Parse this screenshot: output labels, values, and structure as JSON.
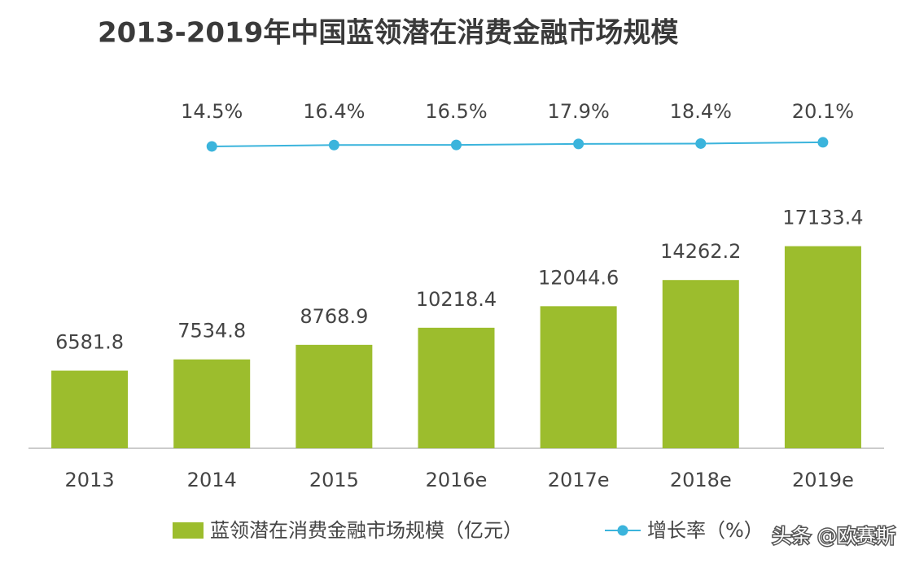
{
  "chart_data": {
    "type": "bar",
    "title": "2013-2019年中国蓝领潜在消费金融市场规模",
    "categories": [
      "2013",
      "2014",
      "2015",
      "2016e",
      "2017e",
      "2018e",
      "2019e"
    ],
    "series": [
      {
        "name": "蓝领潜在消费金融市场规模（亿元）",
        "type": "bar",
        "color": "#9cbd2d",
        "values": [
          6581.8,
          7534.8,
          8768.9,
          10218.4,
          12044.6,
          14262.2,
          17133.4
        ]
      },
      {
        "name": "增长率（%）",
        "type": "line",
        "axis": "y2",
        "color": "#3bb4dc",
        "values": [
          null,
          14.5,
          16.4,
          16.5,
          17.9,
          18.4,
          20.1
        ],
        "value_labels": [
          null,
          "14.5%",
          "16.4%",
          "16.5%",
          "17.9%",
          "18.4%",
          "20.1%"
        ]
      }
    ],
    "ylim": [
      0,
      18000
    ],
    "y2lim": [
      0,
      100
    ],
    "watermark": "头条 @欧赛斯"
  }
}
